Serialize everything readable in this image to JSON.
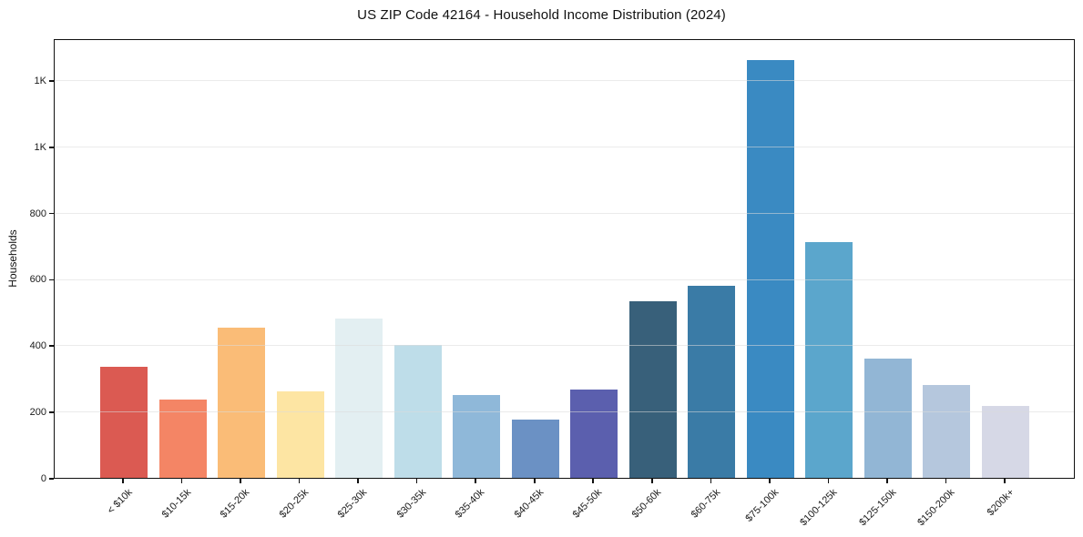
{
  "figure": {
    "title": "US ZIP Code 42164 - Household Income Distribution (2024)",
    "ylabel": "Households"
  },
  "chart_data": {
    "type": "bar",
    "title": "US ZIP Code 42164 - Household Income Distribution (2024)",
    "xlabel": "",
    "ylabel": "Households",
    "categories": [
      "< $10k",
      "$10-15k",
      "$15-20k",
      "$20-25k",
      "$25-30k",
      "$30-35k",
      "$35-40k",
      "$40-45k",
      "$45-50k",
      "$50-60k",
      "$60-75k",
      "$75-100k",
      "$100-125k",
      "$125-150k",
      "$150-200k",
      "$200k+"
    ],
    "values": [
      335,
      237,
      452,
      260,
      481,
      400,
      251,
      175,
      266,
      532,
      578,
      1261,
      710,
      361,
      280,
      218
    ],
    "bar_colors": [
      "#db5a52",
      "#f48565",
      "#fabc77",
      "#fde5a3",
      "#e3eff2",
      "#bedde9",
      "#8fb8d9",
      "#6b91c4",
      "#5b5fae",
      "#38607a",
      "#3a7ba6",
      "#3a8ac2",
      "#5ba6cc",
      "#92b6d5",
      "#b5c7dd",
      "#d6d8e6"
    ],
    "ylim": [
      0,
      1326
    ],
    "yticks": {
      "values": [
        0,
        200,
        400,
        600,
        800,
        1000,
        1200
      ],
      "labels": [
        "0",
        "200",
        "400",
        "600",
        "800",
        "1K",
        "1K"
      ]
    },
    "grid": "horizontal",
    "grid_color": "#e9e9e9",
    "legend": "none",
    "frame_color": "#101010"
  }
}
